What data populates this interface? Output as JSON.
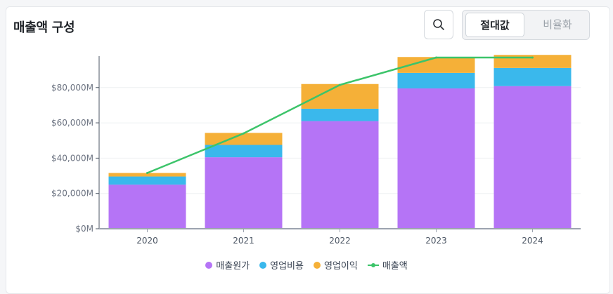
{
  "header": {
    "title": "매출액 구성",
    "search_icon": "search-icon",
    "toggle": {
      "options": [
        "절대값",
        "비율화"
      ],
      "selected": "절대값"
    }
  },
  "colors": {
    "cost": "#b574f6",
    "opex": "#3ab8ec",
    "profit": "#f5b038",
    "revenue": "#3cc46a"
  },
  "chart_data": {
    "type": "bar",
    "stacked": true,
    "categories": [
      "2020",
      "2021",
      "2022",
      "2023",
      "2024"
    ],
    "ylim": [
      0,
      97000
    ],
    "yticks": [
      0,
      20000,
      40000,
      60000,
      80000
    ],
    "ytick_labels": [
      "$0M",
      "$20,000M",
      "$40,000M",
      "$60,000M",
      "$80,000M"
    ],
    "series": [
      {
        "name": "매출원가",
        "values": [
          25000,
          40500,
          61000,
          79500,
          80800
        ]
      },
      {
        "name": "영업비용",
        "values": [
          4600,
          7000,
          7000,
          8800,
          10300
        ]
      },
      {
        "name": "영업이익",
        "values": [
          2000,
          6800,
          14000,
          9000,
          7400
        ]
      }
    ],
    "line": {
      "name": "매출액",
      "values": [
        31600,
        54000,
        81500,
        97000,
        98000
      ]
    },
    "legend_position": "bottom",
    "grid": true
  }
}
